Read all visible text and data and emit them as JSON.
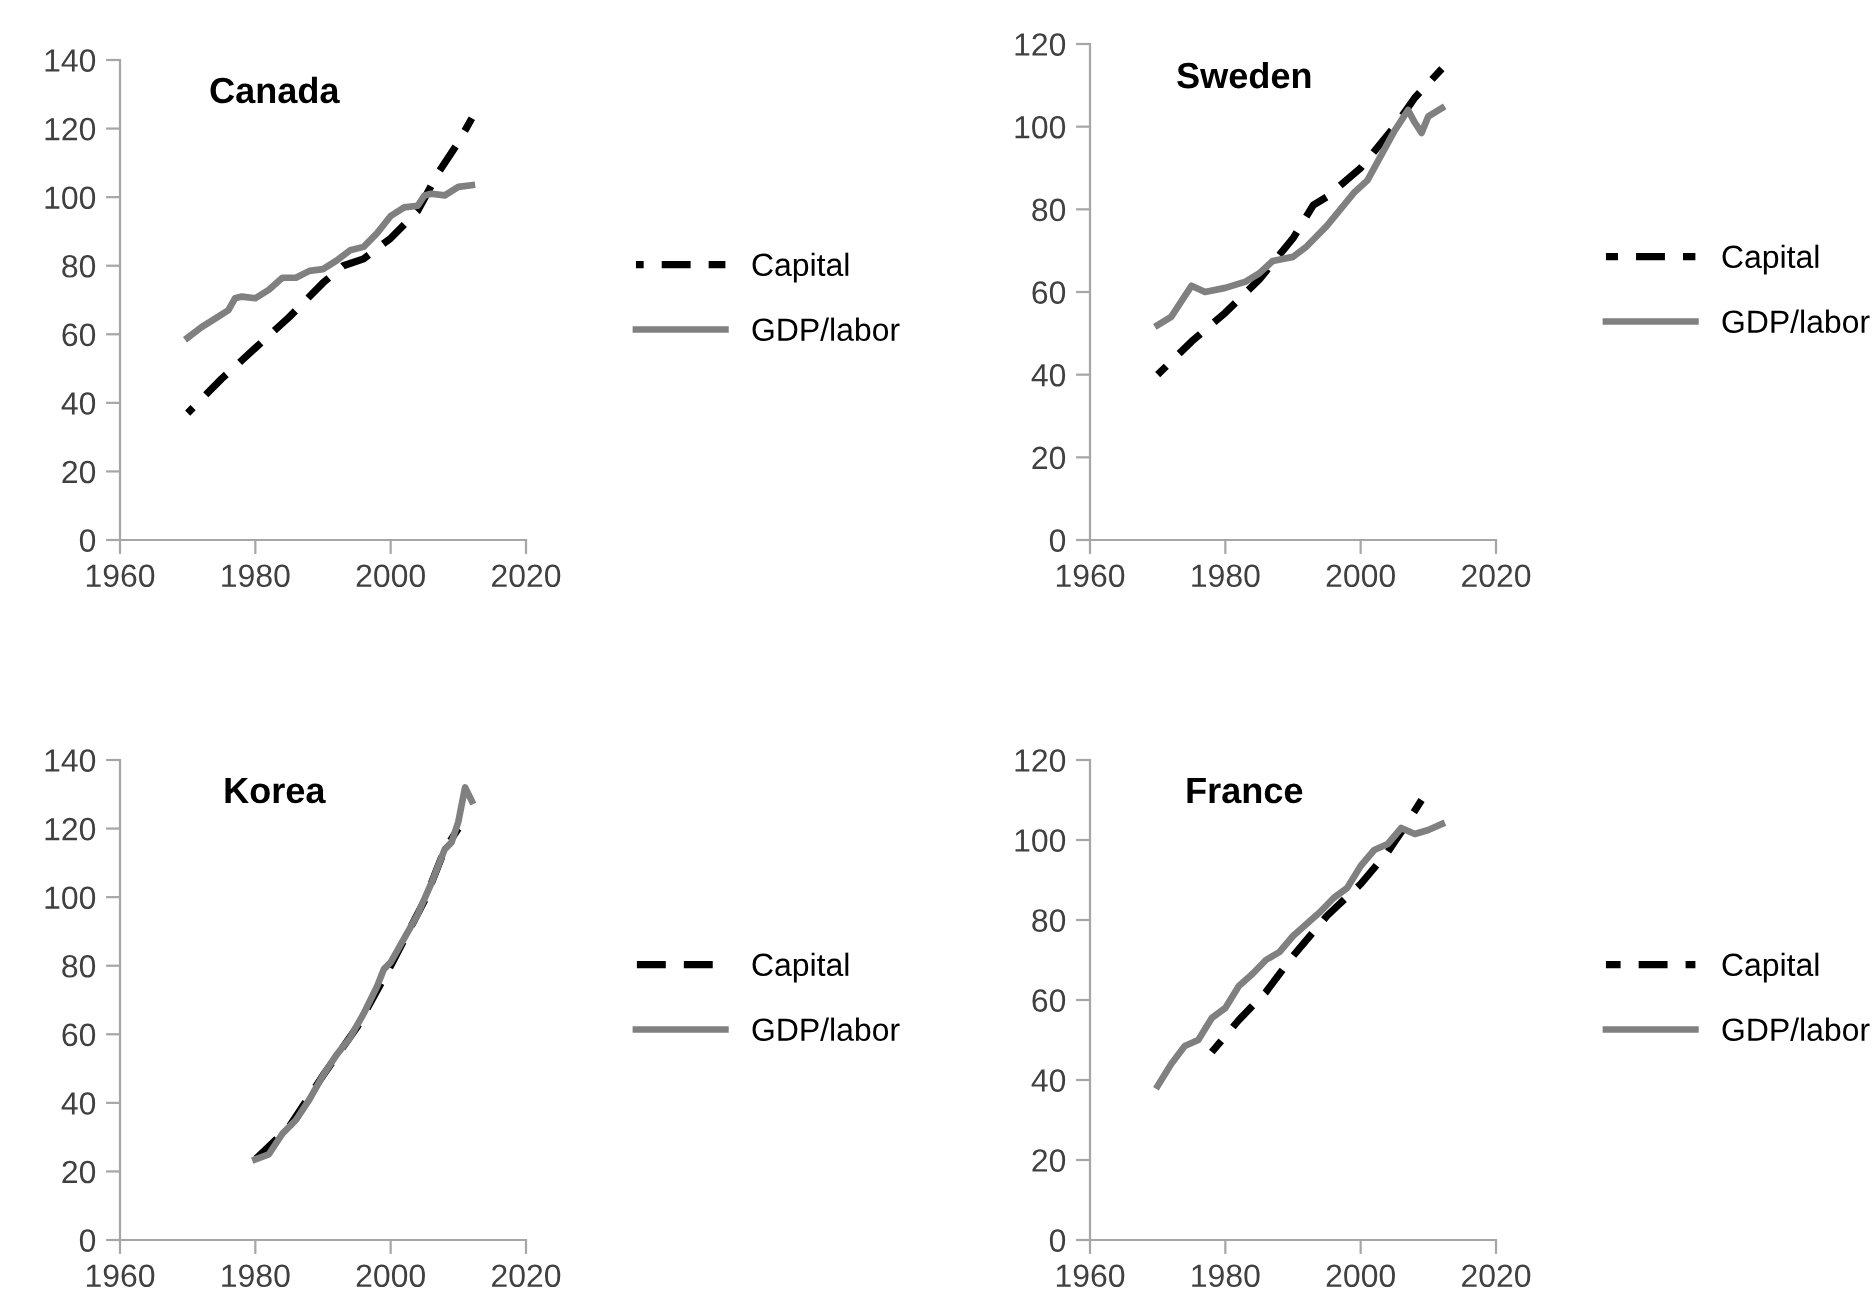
{
  "chart_data": [
    {
      "type": "line",
      "title": "Canada",
      "xlim": [
        1960,
        2020
      ],
      "xticks": [
        1960,
        1980,
        2000,
        2020
      ],
      "ylim": [
        0,
        140
      ],
      "yticks": [
        0,
        20,
        40,
        60,
        80,
        100,
        120,
        140
      ],
      "grid": false,
      "legend": "right",
      "series": [
        {
          "name": "Capital",
          "color": "#000000",
          "line_style": "dashed",
          "x": [
            1970,
            1975,
            1980,
            1985,
            1990,
            1993,
            1996,
            2000,
            2004,
            2007,
            2010,
            2012
          ],
          "values": [
            37,
            47,
            56,
            65,
            75,
            80,
            82,
            88,
            96,
            107,
            116,
            123
          ]
        },
        {
          "name": "GDP/labor",
          "color": "#808080",
          "line_style": "solid",
          "x": [
            1970,
            1972,
            1974,
            1976,
            1977,
            1978,
            1980,
            1982,
            1984,
            1986,
            1988,
            1990,
            1992,
            1994,
            1996,
            1998,
            2000,
            2002,
            2004,
            2005,
            2006,
            2008,
            2010,
            2012
          ],
          "values": [
            59,
            62,
            64.5,
            67,
            70.5,
            71,
            70.5,
            73,
            76.5,
            76.5,
            78.5,
            79,
            81.5,
            84.5,
            85.5,
            89.5,
            94.5,
            97,
            97.5,
            100.5,
            101,
            100.5,
            103,
            103.5
          ]
        }
      ]
    },
    {
      "type": "line",
      "title": "Sweden",
      "xlim": [
        1960,
        2020
      ],
      "xticks": [
        1960,
        1980,
        2000,
        2020
      ],
      "ylim": [
        0,
        120
      ],
      "yticks": [
        0,
        20,
        40,
        60,
        80,
        100,
        120
      ],
      "grid": false,
      "legend": "right",
      "series": [
        {
          "name": "Capital",
          "color": "#000000",
          "line_style": "dashed",
          "x": [
            1970,
            1975,
            1980,
            1985,
            1990,
            1993,
            1995,
            2000,
            2005,
            2008,
            2012
          ],
          "values": [
            40,
            48,
            55,
            63,
            73,
            81,
            83,
            90,
            100,
            107,
            114
          ]
        },
        {
          "name": "GDP/labor",
          "color": "#808080",
          "line_style": "solid",
          "x": [
            1970,
            1972,
            1974,
            1975,
            1977,
            1980,
            1983,
            1985,
            1987,
            1990,
            1992,
            1995,
            1997,
            1999,
            2001,
            2003,
            2005,
            2007,
            2008,
            2009,
            2010,
            2012
          ],
          "values": [
            52,
            54,
            59,
            61.5,
            60,
            61,
            62.5,
            64.5,
            67.5,
            68.5,
            71,
            76,
            80,
            84,
            87,
            93,
            99,
            104,
            101,
            98.5,
            102.5,
            104.5
          ]
        }
      ]
    },
    {
      "type": "line",
      "title": "Korea",
      "xlim": [
        1960,
        2020
      ],
      "xticks": [
        1960,
        1980,
        2000,
        2020
      ],
      "ylim": [
        0,
        140
      ],
      "yticks": [
        0,
        20,
        40,
        60,
        80,
        100,
        120,
        140
      ],
      "grid": false,
      "legend": "right",
      "series": [
        {
          "name": "Capital",
          "color": "#000000",
          "line_style": "dashed",
          "x": [
            1980,
            1985,
            1990,
            1995,
            2000,
            2005,
            2008,
            2010
          ],
          "values": [
            23.5,
            33,
            48,
            62,
            80,
            99,
            114,
            120
          ]
        },
        {
          "name": "GDP/labor",
          "color": "#808080",
          "line_style": "solid",
          "x": [
            1980,
            1982,
            1984,
            1986,
            1988,
            1990,
            1992,
            1994,
            1996,
            1998,
            1999,
            2000,
            2002,
            2004,
            2006,
            2008,
            2009,
            2010,
            2011,
            2012
          ],
          "values": [
            23.5,
            25,
            31,
            35,
            41,
            48,
            54,
            59,
            66,
            74,
            79,
            81,
            88,
            95,
            104,
            114,
            116,
            122,
            132,
            128
          ]
        }
      ]
    },
    {
      "type": "line",
      "title": "France",
      "xlim": [
        1960,
        2020
      ],
      "xticks": [
        1960,
        1980,
        2000,
        2020
      ],
      "ylim": [
        0,
        120
      ],
      "yticks": [
        0,
        20,
        40,
        60,
        80,
        100,
        120
      ],
      "grid": false,
      "legend": "right",
      "series": [
        {
          "name": "Capital",
          "color": "#000000",
          "line_style": "dashed",
          "x": [
            1978,
            1982,
            1986,
            1990,
            1995,
            2000,
            2004,
            2006,
            2009
          ],
          "values": [
            47,
            55,
            62,
            71,
            81,
            89,
            97,
            102,
            110
          ]
        },
        {
          "name": "GDP/labor",
          "color": "#808080",
          "line_style": "solid",
          "x": [
            1970,
            1972,
            1974,
            1976,
            1978,
            1980,
            1982,
            1984,
            1986,
            1988,
            1990,
            1992,
            1994,
            1996,
            1998,
            2000,
            2002,
            2004,
            2006,
            2008,
            2010,
            2012
          ],
          "values": [
            38.5,
            44,
            48.5,
            50,
            55.5,
            58,
            63.5,
            66.5,
            70,
            72,
            76,
            79,
            82,
            85.5,
            88,
            93.5,
            97.5,
            99,
            103,
            101.5,
            102.5,
            104
          ]
        }
      ]
    }
  ]
}
